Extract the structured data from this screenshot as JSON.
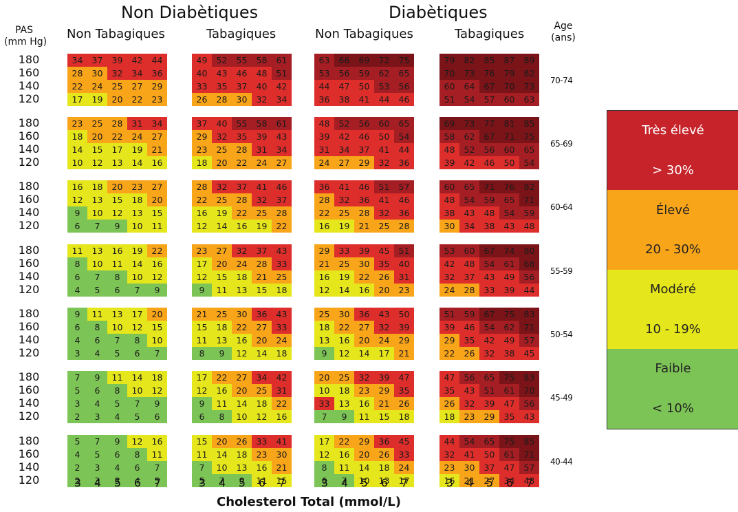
{
  "headers": {
    "group_non_diab": "Non Diabètiques",
    "group_diab": "Diabètiques",
    "non_tab": "Non Tabagiques",
    "tab": "Tabagiques",
    "pas_line1": "PAS",
    "pas_line2": "(mm Hg)",
    "age_line1": "Age",
    "age_line2": "(ans)",
    "x_axis_label": "Cholesterol Total (mmol/L)"
  },
  "colors": {
    "very_high": "#c6242a",
    "high": "#f9a51a",
    "moderate": "#e5e61b",
    "low": "#7dc457"
  },
  "legend": [
    {
      "label": "Très élevé",
      "color": "#c6242a"
    },
    {
      "label": "> 30%",
      "color": "#c6242a"
    },
    {
      "label": "Élevé",
      "color": "#f9a51a"
    },
    {
      "label": "20 - 30%",
      "color": "#f9a51a"
    },
    {
      "label": "Modéré",
      "color": "#e5e61b"
    },
    {
      "label": "10 - 19%",
      "color": "#e5e61b"
    },
    {
      "label": "Faible",
      "color": "#7dc457"
    },
    {
      "label": "< 10%",
      "color": "#7dc457"
    }
  ],
  "chart_data": {
    "type": "heatmap",
    "xlabel": "Cholesterol Total (mmol/L)",
    "ylabel": "PAS (mm Hg)",
    "x": [
      "3",
      "4",
      "5",
      "6",
      "7"
    ],
    "y": [
      "180",
      "160",
      "140",
      "120"
    ],
    "panels": [
      "Non Diabètiques / Non Tabagiques",
      "Non Diabètiques / Tabagiques",
      "Diabètiques / Non Tabagiques",
      "Diabètiques / Tabagiques"
    ],
    "age_groups": [
      "70-74",
      "65-69",
      "60-64",
      "55-59",
      "50-54",
      "45-49",
      "40-44"
    ],
    "values": [
      [
        [
          [
            34,
            37,
            39,
            42,
            44
          ],
          [
            28,
            30,
            32,
            34,
            36
          ],
          [
            22,
            24,
            25,
            27,
            29
          ],
          [
            17,
            19,
            20,
            22,
            23
          ]
        ],
        [
          [
            49,
            52,
            55,
            58,
            61
          ],
          [
            40,
            43,
            46,
            48,
            51
          ],
          [
            33,
            35,
            37,
            40,
            42
          ],
          [
            26,
            28,
            30,
            32,
            34
          ]
        ],
        [
          [
            63,
            66,
            69,
            72,
            75
          ],
          [
            53,
            56,
            59,
            62,
            65
          ],
          [
            44,
            47,
            50,
            53,
            56
          ],
          [
            36,
            38,
            41,
            44,
            46
          ]
        ],
        [
          [
            79,
            82,
            85,
            87,
            89
          ],
          [
            70,
            73,
            76,
            79,
            82
          ],
          [
            60,
            64,
            67,
            70,
            73
          ],
          [
            51,
            54,
            57,
            60,
            63
          ]
        ]
      ],
      [
        [
          [
            23,
            25,
            28,
            31,
            34
          ],
          [
            18,
            20,
            22,
            24,
            27
          ],
          [
            14,
            15,
            17,
            19,
            21
          ],
          [
            10,
            12,
            13,
            14,
            16
          ]
        ],
        [
          [
            37,
            40,
            55,
            58,
            61
          ],
          [
            29,
            32,
            35,
            39,
            43
          ],
          [
            23,
            25,
            28,
            31,
            34
          ],
          [
            18,
            20,
            22,
            24,
            27
          ]
        ],
        [
          [
            48,
            52,
            56,
            60,
            65
          ],
          [
            39,
            42,
            46,
            50,
            54
          ],
          [
            31,
            34,
            37,
            41,
            44
          ],
          [
            24,
            27,
            29,
            32,
            36
          ]
        ],
        [
          [
            69,
            73,
            77,
            81,
            85
          ],
          [
            58,
            62,
            67,
            71,
            75
          ],
          [
            48,
            52,
            56,
            60,
            65
          ],
          [
            39,
            42,
            46,
            50,
            54
          ]
        ]
      ],
      [
        [
          [
            16,
            18,
            20,
            23,
            27
          ],
          [
            12,
            13,
            15,
            18,
            20
          ],
          [
            9,
            10,
            12,
            13,
            15
          ],
          [
            6,
            7,
            9,
            10,
            11
          ]
        ],
        [
          [
            28,
            32,
            37,
            41,
            46
          ],
          [
            22,
            25,
            28,
            32,
            37
          ],
          [
            16,
            19,
            22,
            25,
            28
          ],
          [
            12,
            14,
            16,
            19,
            22
          ]
        ],
        [
          [
            36,
            41,
            46,
            51,
            57
          ],
          [
            28,
            32,
            36,
            41,
            46
          ],
          [
            22,
            25,
            28,
            32,
            36
          ],
          [
            16,
            19,
            21,
            25,
            28
          ]
        ],
        [
          [
            60,
            65,
            71,
            76,
            82
          ],
          [
            48,
            54,
            59,
            65,
            71
          ],
          [
            38,
            43,
            48,
            54,
            59
          ],
          [
            30,
            34,
            38,
            43,
            48
          ]
        ]
      ],
      [
        [
          [
            11,
            13,
            16,
            19,
            22
          ],
          [
            8,
            10,
            11,
            14,
            16
          ],
          [
            6,
            7,
            8,
            10,
            12
          ],
          [
            4,
            5,
            6,
            7,
            9
          ]
        ],
        [
          [
            23,
            27,
            32,
            37,
            43
          ],
          [
            17,
            20,
            24,
            28,
            33
          ],
          [
            12,
            15,
            18,
            21,
            25
          ],
          [
            9,
            11,
            13,
            15,
            18
          ]
        ],
        [
          [
            29,
            33,
            39,
            45,
            51
          ],
          [
            21,
            25,
            30,
            35,
            40
          ],
          [
            16,
            19,
            22,
            26,
            31
          ],
          [
            12,
            14,
            16,
            20,
            23
          ]
        ],
        [
          [
            53,
            60,
            67,
            74,
            80
          ],
          [
            42,
            48,
            54,
            61,
            68
          ],
          [
            32,
            37,
            43,
            49,
            56
          ],
          [
            24,
            28,
            33,
            39,
            44
          ]
        ]
      ],
      [
        [
          [
            9,
            11,
            13,
            17,
            20
          ],
          [
            6,
            8,
            10,
            12,
            15
          ],
          [
            4,
            6,
            7,
            8,
            10
          ],
          [
            3,
            4,
            5,
            6,
            7
          ]
        ],
        [
          [
            21,
            25,
            30,
            36,
            43
          ],
          [
            15,
            18,
            22,
            27,
            33
          ],
          [
            11,
            13,
            16,
            20,
            24
          ],
          [
            8,
            9,
            12,
            14,
            18
          ]
        ],
        [
          [
            25,
            30,
            36,
            43,
            50
          ],
          [
            18,
            22,
            27,
            32,
            39
          ],
          [
            13,
            16,
            20,
            24,
            29
          ],
          [
            9,
            12,
            14,
            17,
            21
          ]
        ],
        [
          [
            51,
            59,
            67,
            75,
            83
          ],
          [
            39,
            46,
            54,
            62,
            71
          ],
          [
            29,
            35,
            42,
            49,
            57
          ],
          [
            22,
            26,
            32,
            38,
            45
          ]
        ]
      ],
      [
        [
          [
            7,
            9,
            11,
            14,
            18
          ],
          [
            5,
            6,
            8,
            10,
            12
          ],
          [
            3,
            4,
            5,
            7,
            9
          ],
          [
            2,
            3,
            4,
            5,
            6
          ]
        ],
        [
          [
            17,
            22,
            27,
            34,
            42
          ],
          [
            12,
            16,
            20,
            25,
            31
          ],
          [
            9,
            11,
            14,
            18,
            22
          ],
          [
            6,
            8,
            10,
            12,
            16
          ]
        ],
        [
          [
            20,
            25,
            32,
            39,
            47
          ],
          [
            10,
            18,
            23,
            29,
            35
          ],
          [
            33,
            13,
            16,
            21,
            26
          ],
          [
            7,
            9,
            11,
            15,
            18
          ]
        ],
        [
          [
            47,
            56,
            65,
            75,
            83
          ],
          [
            35,
            43,
            51,
            61,
            70
          ],
          [
            26,
            32,
            39,
            47,
            56
          ],
          [
            18,
            23,
            29,
            35,
            43
          ]
        ]
      ],
      [
        [
          [
            5,
            7,
            9,
            12,
            16
          ],
          [
            4,
            5,
            6,
            8,
            11
          ],
          [
            2,
            3,
            4,
            6,
            7
          ],
          [
            2,
            3,
            3,
            4,
            5
          ]
        ],
        [
          [
            15,
            20,
            26,
            33,
            41
          ],
          [
            11,
            14,
            18,
            23,
            30
          ],
          [
            7,
            10,
            13,
            16,
            21
          ],
          [
            5,
            7,
            9,
            11,
            15
          ]
        ],
        [
          [
            17,
            22,
            29,
            36,
            45
          ],
          [
            12,
            16,
            20,
            26,
            33
          ],
          [
            8,
            11,
            14,
            18,
            24
          ],
          [
            6,
            7,
            10,
            13,
            17
          ]
        ],
        [
          [
            44,
            54,
            65,
            75,
            85
          ],
          [
            32,
            41,
            50,
            61,
            71
          ],
          [
            23,
            30,
            37,
            47,
            57
          ],
          [
            16,
            21,
            27,
            34,
            43
          ]
        ]
      ]
    ]
  }
}
